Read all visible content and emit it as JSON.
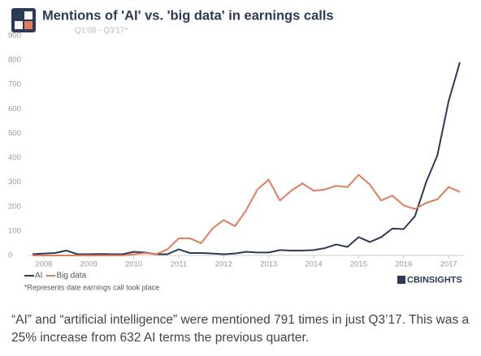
{
  "chart_data": {
    "type": "line",
    "title": "Mentions of  'AI' vs. 'big data' in earnings calls",
    "subtitle": "Q1'08 - Q3'17*",
    "categories": [
      null,
      "2008",
      null,
      null,
      null,
      "2009",
      null,
      null,
      null,
      "2010",
      null,
      null,
      null,
      "2011",
      null,
      null,
      null,
      "2012",
      null,
      null,
      null,
      "2013",
      null,
      null,
      null,
      "2014",
      null,
      null,
      null,
      "2015",
      null,
      null,
      null,
      "2016",
      null,
      null,
      null,
      "2017",
      null
    ],
    "series": [
      {
        "name": "AI",
        "color": "#2c3a56",
        "values": [
          5,
          8,
          10,
          20,
          5,
          5,
          6,
          5,
          5,
          15,
          12,
          5,
          5,
          25,
          10,
          10,
          8,
          5,
          8,
          15,
          12,
          12,
          22,
          20,
          20,
          22,
          30,
          45,
          35,
          75,
          55,
          75,
          110,
          108,
          160,
          300,
          410,
          632,
          791
        ]
      },
      {
        "name": "Big data",
        "color": "#e07c5c",
        "values": [
          0,
          0,
          0,
          0,
          0,
          0,
          0,
          0,
          0,
          5,
          10,
          5,
          25,
          70,
          70,
          50,
          110,
          145,
          120,
          185,
          270,
          310,
          225,
          265,
          295,
          265,
          270,
          285,
          280,
          330,
          290,
          225,
          245,
          205,
          190,
          215,
          230,
          280,
          260
        ]
      }
    ],
    "ylim": [
      0,
      900
    ],
    "yticks": [
      0,
      100,
      200,
      300,
      400,
      500,
      600,
      700,
      800,
      900
    ],
    "grid": false,
    "footnote": "*Represents date earnings call took place",
    "source_logo": "CBINSIGHTS",
    "caption": "“AI” and “artificial intelligence” were mentioned 791 times in just Q3’17. This was a 25% increase from 632 AI terms the previous quarter."
  }
}
